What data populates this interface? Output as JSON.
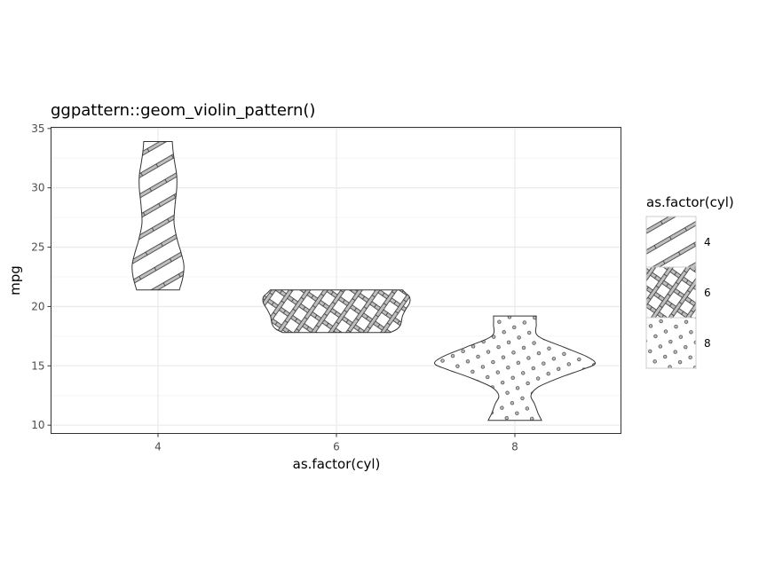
{
  "chart_data": {
    "type": "violin",
    "title": "ggpattern::geom_violin_pattern()",
    "xlabel": "as.factor(cyl)",
    "ylabel": "mpg",
    "categories": [
      "4",
      "6",
      "8"
    ],
    "ylim": [
      9.3,
      35.1
    ],
    "y_ticks": [
      10,
      15,
      20,
      25,
      30,
      35
    ],
    "grid": true,
    "legend": {
      "title": "as.factor(cyl)",
      "position": "right",
      "entries": [
        {
          "label": "4",
          "pattern": "stripe"
        },
        {
          "label": "6",
          "pattern": "crosshatch"
        },
        {
          "label": "8",
          "pattern": "circle"
        }
      ]
    },
    "series": [
      {
        "category": "4",
        "pattern": "stripe",
        "min": 21.4,
        "max": 33.9,
        "profile": [
          {
            "y": 21.4,
            "half": 0.12
          },
          {
            "y": 22.5,
            "half": 0.14
          },
          {
            "y": 23.5,
            "half": 0.145
          },
          {
            "y": 24.5,
            "half": 0.13
          },
          {
            "y": 25.5,
            "half": 0.11
          },
          {
            "y": 27.0,
            "half": 0.09
          },
          {
            "y": 28.5,
            "half": 0.095
          },
          {
            "y": 30.0,
            "half": 0.105
          },
          {
            "y": 31.0,
            "half": 0.105
          },
          {
            "y": 32.0,
            "half": 0.095
          },
          {
            "y": 33.0,
            "half": 0.085
          },
          {
            "y": 33.9,
            "half": 0.08
          }
        ]
      },
      {
        "category": "6",
        "pattern": "crosshatch",
        "min": 17.8,
        "max": 21.4,
        "profile": [
          {
            "y": 17.8,
            "half": 0.3
          },
          {
            "y": 18.1,
            "half": 0.34
          },
          {
            "y": 18.5,
            "half": 0.36
          },
          {
            "y": 19.2,
            "half": 0.37
          },
          {
            "y": 19.8,
            "half": 0.39
          },
          {
            "y": 20.3,
            "half": 0.41
          },
          {
            "y": 20.8,
            "half": 0.41
          },
          {
            "y": 21.1,
            "half": 0.39
          },
          {
            "y": 21.4,
            "half": 0.37
          }
        ]
      },
      {
        "category": "8",
        "pattern": "circle",
        "min": 10.4,
        "max": 19.2,
        "profile": [
          {
            "y": 10.4,
            "half": 0.15
          },
          {
            "y": 11.0,
            "half": 0.13
          },
          {
            "y": 11.8,
            "half": 0.11
          },
          {
            "y": 12.5,
            "half": 0.09
          },
          {
            "y": 13.2,
            "half": 0.13
          },
          {
            "y": 14.0,
            "half": 0.25
          },
          {
            "y": 14.7,
            "half": 0.38
          },
          {
            "y": 15.2,
            "half": 0.45
          },
          {
            "y": 15.8,
            "half": 0.4
          },
          {
            "y": 16.6,
            "half": 0.27
          },
          {
            "y": 17.5,
            "half": 0.13
          },
          {
            "y": 18.5,
            "half": 0.12
          },
          {
            "y": 19.2,
            "half": 0.12
          }
        ]
      }
    ]
  },
  "colors": {
    "panel_border": "#333333",
    "grid_major": "#ebebeb",
    "grid_minor": "#f5f5f5",
    "pattern_fill": "#bfbfbf",
    "outline": "#333333",
    "background": "#ffffff"
  }
}
